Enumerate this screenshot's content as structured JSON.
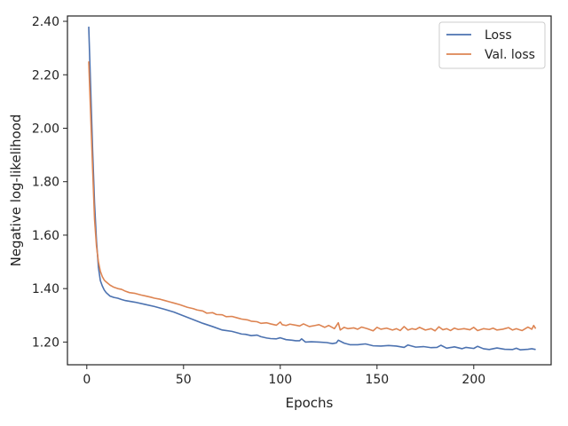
{
  "chart_data": {
    "type": "line",
    "xlabel": "Epochs",
    "ylabel": "Negative log-likelihood",
    "xlim": [
      -10,
      240
    ],
    "ylim": [
      1.115,
      2.42
    ],
    "x_ticks": [
      0,
      50,
      100,
      150,
      200
    ],
    "x_tick_labels": [
      "0",
      "50",
      "100",
      "150",
      "200"
    ],
    "y_ticks": [
      1.2,
      1.4,
      1.6,
      1.8,
      2.0,
      2.2,
      2.4
    ],
    "y_tick_labels": [
      "1.20",
      "1.40",
      "1.60",
      "1.80",
      "2.00",
      "2.20",
      "2.40"
    ],
    "grid": false,
    "legend_position": "top-right",
    "series": [
      {
        "name": "Loss",
        "color": "#4c72b0",
        "x": [
          1,
          2,
          3,
          4,
          5,
          6,
          7,
          8,
          9,
          10,
          12,
          14,
          16,
          18,
          20,
          25,
          30,
          35,
          40,
          45,
          50,
          55,
          60,
          65,
          70,
          72,
          75,
          78,
          80,
          82,
          85,
          88,
          90,
          93,
          95,
          98,
          100,
          103,
          106,
          108,
          110,
          111,
          113,
          116,
          120,
          124,
          127,
          129,
          130,
          133,
          136,
          140,
          144,
          148,
          152,
          156,
          160,
          164,
          166,
          170,
          174,
          178,
          181,
          183,
          186,
          190,
          194,
          196,
          200,
          202,
          205,
          208,
          212,
          216,
          220,
          222,
          224,
          228,
          230,
          232
        ],
        "values": [
          2.38,
          2.15,
          1.92,
          1.72,
          1.58,
          1.48,
          1.43,
          1.41,
          1.395,
          1.385,
          1.372,
          1.367,
          1.364,
          1.359,
          1.355,
          1.349,
          1.341,
          1.333,
          1.323,
          1.312,
          1.298,
          1.284,
          1.27,
          1.258,
          1.245,
          1.243,
          1.24,
          1.234,
          1.23,
          1.229,
          1.224,
          1.226,
          1.22,
          1.215,
          1.213,
          1.212,
          1.216,
          1.209,
          1.207,
          1.205,
          1.205,
          1.212,
          1.2,
          1.201,
          1.2,
          1.198,
          1.194,
          1.197,
          1.207,
          1.196,
          1.19,
          1.19,
          1.193,
          1.186,
          1.185,
          1.187,
          1.185,
          1.18,
          1.189,
          1.181,
          1.183,
          1.179,
          1.18,
          1.188,
          1.177,
          1.182,
          1.175,
          1.18,
          1.176,
          1.184,
          1.175,
          1.172,
          1.178,
          1.173,
          1.172,
          1.177,
          1.171,
          1.173,
          1.175,
          1.172
        ]
      },
      {
        "name": "Val. loss",
        "color": "#dd8452",
        "x": [
          1,
          2,
          3,
          4,
          5,
          6,
          7,
          8,
          9,
          10,
          12,
          14,
          16,
          18,
          20,
          22,
          25,
          28,
          30,
          33,
          35,
          38,
          40,
          43,
          45,
          48,
          50,
          52,
          55,
          57,
          60,
          62,
          65,
          67,
          70,
          72,
          75,
          78,
          80,
          83,
          85,
          88,
          90,
          93,
          95,
          98,
          100,
          101,
          103,
          105,
          108,
          110,
          112,
          115,
          118,
          120,
          123,
          125,
          128,
          130,
          131,
          133,
          135,
          138,
          140,
          142,
          145,
          148,
          150,
          152,
          155,
          158,
          160,
          162,
          164,
          166,
          168,
          170,
          172,
          175,
          178,
          180,
          182,
          184,
          186,
          188,
          190,
          192,
          195,
          198,
          200,
          202,
          205,
          208,
          210,
          212,
          215,
          218,
          220,
          222,
          225,
          228,
          230,
          231,
          232
        ],
        "values": [
          2.25,
          2.05,
          1.85,
          1.66,
          1.56,
          1.5,
          1.465,
          1.445,
          1.432,
          1.425,
          1.413,
          1.405,
          1.4,
          1.397,
          1.39,
          1.385,
          1.382,
          1.376,
          1.373,
          1.368,
          1.364,
          1.36,
          1.356,
          1.35,
          1.346,
          1.34,
          1.335,
          1.33,
          1.325,
          1.32,
          1.316,
          1.308,
          1.31,
          1.303,
          1.302,
          1.295,
          1.296,
          1.29,
          1.286,
          1.283,
          1.278,
          1.276,
          1.27,
          1.272,
          1.268,
          1.263,
          1.275,
          1.265,
          1.262,
          1.267,
          1.263,
          1.26,
          1.268,
          1.258,
          1.262,
          1.265,
          1.255,
          1.262,
          1.25,
          1.272,
          1.245,
          1.255,
          1.25,
          1.253,
          1.248,
          1.256,
          1.25,
          1.242,
          1.255,
          1.248,
          1.252,
          1.245,
          1.25,
          1.243,
          1.258,
          1.245,
          1.25,
          1.247,
          1.255,
          1.245,
          1.25,
          1.242,
          1.257,
          1.246,
          1.25,
          1.243,
          1.252,
          1.247,
          1.25,
          1.246,
          1.255,
          1.243,
          1.25,
          1.247,
          1.252,
          1.245,
          1.248,
          1.254,
          1.245,
          1.25,
          1.243,
          1.256,
          1.248,
          1.262,
          1.25
        ]
      }
    ]
  }
}
